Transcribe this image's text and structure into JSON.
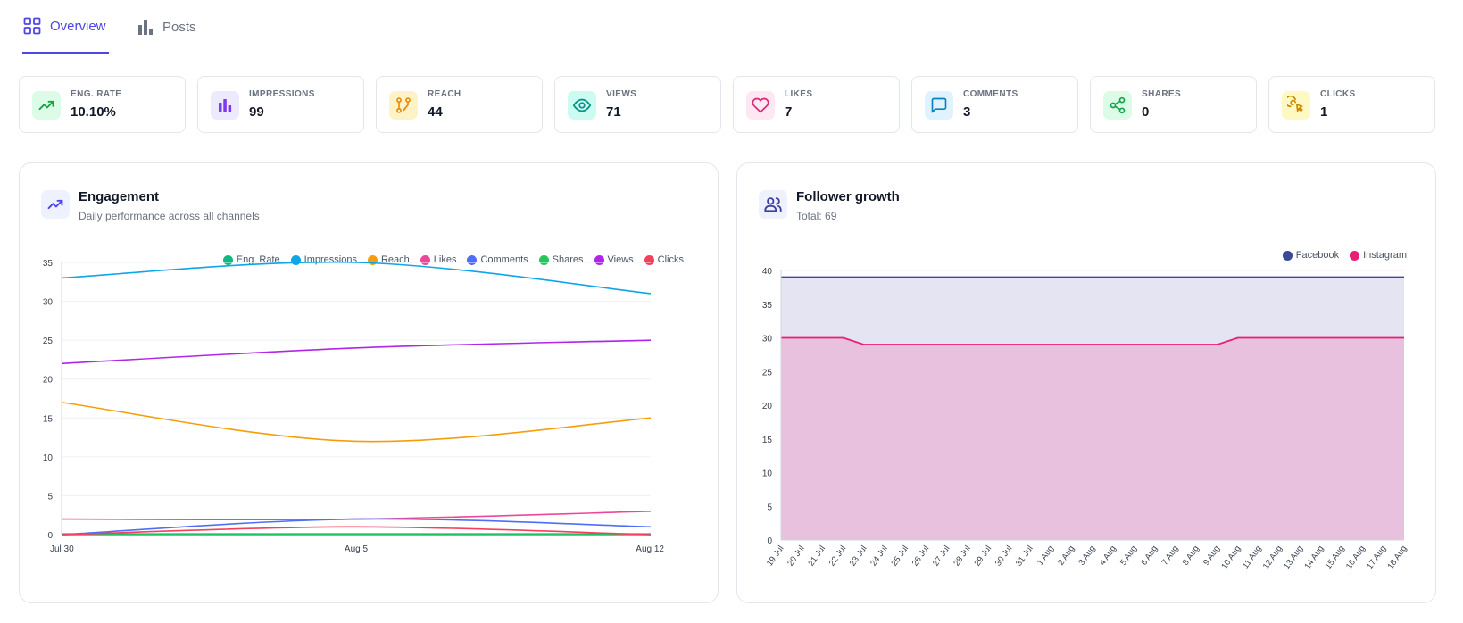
{
  "tabs": [
    {
      "label": "Overview",
      "icon": "grid-icon",
      "active": true
    },
    {
      "label": "Posts",
      "icon": "bar-chart-icon",
      "active": false
    }
  ],
  "stats": [
    {
      "label": "ENG. RATE",
      "value": "10.10%",
      "icon": "trending-up-icon",
      "color": "#16a34a",
      "bg": "#dcfce7"
    },
    {
      "label": "IMPRESSIONS",
      "value": "99",
      "icon": "bar-chart-icon",
      "color": "#7c3aed",
      "bg": "#ede9fe"
    },
    {
      "label": "REACH",
      "value": "44",
      "icon": "git-pull-request-icon",
      "color": "#ea8a0a",
      "bg": "#fef3c7"
    },
    {
      "label": "VIEWS",
      "value": "71",
      "icon": "eye-icon",
      "color": "#0d9488",
      "bg": "#ccfbf1"
    },
    {
      "label": "LIKES",
      "value": "7",
      "icon": "heart-icon",
      "color": "#db2777",
      "bg": "#fce7f3"
    },
    {
      "label": "COMMENTS",
      "value": "3",
      "icon": "message-square-icon",
      "color": "#0284c7",
      "bg": "#e0f2fe"
    },
    {
      "label": "SHARES",
      "value": "0",
      "icon": "share-icon",
      "color": "#16a34a",
      "bg": "#dcfce7"
    },
    {
      "label": "CLICKS",
      "value": "1",
      "icon": "cursor-click-icon",
      "color": "#ca8a04",
      "bg": "#fef9c3"
    }
  ],
  "engagement": {
    "title": "Engagement",
    "subtitle": "Daily performance across all channels",
    "icon": "trending-up-icon"
  },
  "followers": {
    "title": "Follower growth",
    "subtitle": "Total: 69",
    "icon": "users-icon"
  },
  "chart_data": [
    {
      "type": "line",
      "title": "Engagement",
      "x": [
        "Jul 30",
        "Aug 5",
        "Aug 12"
      ],
      "ylim": [
        0,
        35
      ],
      "yticks": [
        0,
        5,
        10,
        15,
        20,
        25,
        30,
        35
      ],
      "grid": true,
      "legend": "top-right",
      "series": [
        {
          "name": "Eng. Rate",
          "color": "#10b981",
          "values": [
            0.1,
            0.1,
            0.1
          ]
        },
        {
          "name": "Impressions",
          "color": "#0ea5e9",
          "values": [
            33,
            35,
            31
          ]
        },
        {
          "name": "Reach",
          "color": "#f59e0b",
          "values": [
            17,
            12,
            15
          ]
        },
        {
          "name": "Likes",
          "color": "#ec4899",
          "values": [
            2,
            2,
            3
          ]
        },
        {
          "name": "Comments",
          "color": "#4f6ef7",
          "values": [
            0,
            2,
            1
          ]
        },
        {
          "name": "Shares",
          "color": "#22c55e",
          "values": [
            0,
            0,
            0
          ]
        },
        {
          "name": "Views",
          "color": "#b026e8",
          "values": [
            22,
            24,
            25
          ]
        },
        {
          "name": "Clicks",
          "color": "#f43f5e",
          "values": [
            0,
            1,
            0
          ]
        }
      ]
    },
    {
      "type": "area",
      "title": "Follower growth",
      "x": [
        "19 Jul",
        "20 Jul",
        "21 Jul",
        "22 Jul",
        "23 Jul",
        "24 Jul",
        "25 Jul",
        "26 Jul",
        "27 Jul",
        "28 Jul",
        "29 Jul",
        "30 Jul",
        "31 Jul",
        "1 Aug",
        "2 Aug",
        "3 Aug",
        "4 Aug",
        "5 Aug",
        "6 Aug",
        "7 Aug",
        "8 Aug",
        "9 Aug",
        "10 Aug",
        "11 Aug",
        "12 Aug",
        "13 Aug",
        "14 Aug",
        "15 Aug",
        "16 Aug",
        "17 Aug",
        "18 Aug"
      ],
      "ylim": [
        0,
        40
      ],
      "yticks": [
        0,
        5,
        10,
        15,
        20,
        25,
        30,
        35,
        40
      ],
      "grid": true,
      "legend": "top-right",
      "series": [
        {
          "name": "Facebook",
          "color": "#3a4a94",
          "fill": "#e4e4f2",
          "values": [
            39,
            39,
            39,
            39,
            39,
            39,
            39,
            39,
            39,
            39,
            39,
            39,
            39,
            39,
            39,
            39,
            39,
            39,
            39,
            39,
            39,
            39,
            39,
            39,
            39,
            39,
            39,
            39,
            39,
            39,
            39
          ]
        },
        {
          "name": "Instagram",
          "color": "#e91e74",
          "fill": "#e8c1df",
          "values": [
            30,
            30,
            30,
            30,
            29,
            29,
            29,
            29,
            29,
            29,
            29,
            29,
            29,
            29,
            29,
            29,
            29,
            29,
            29,
            29,
            29,
            29,
            30,
            30,
            30,
            30,
            30,
            30,
            30,
            30,
            30
          ]
        }
      ]
    }
  ]
}
